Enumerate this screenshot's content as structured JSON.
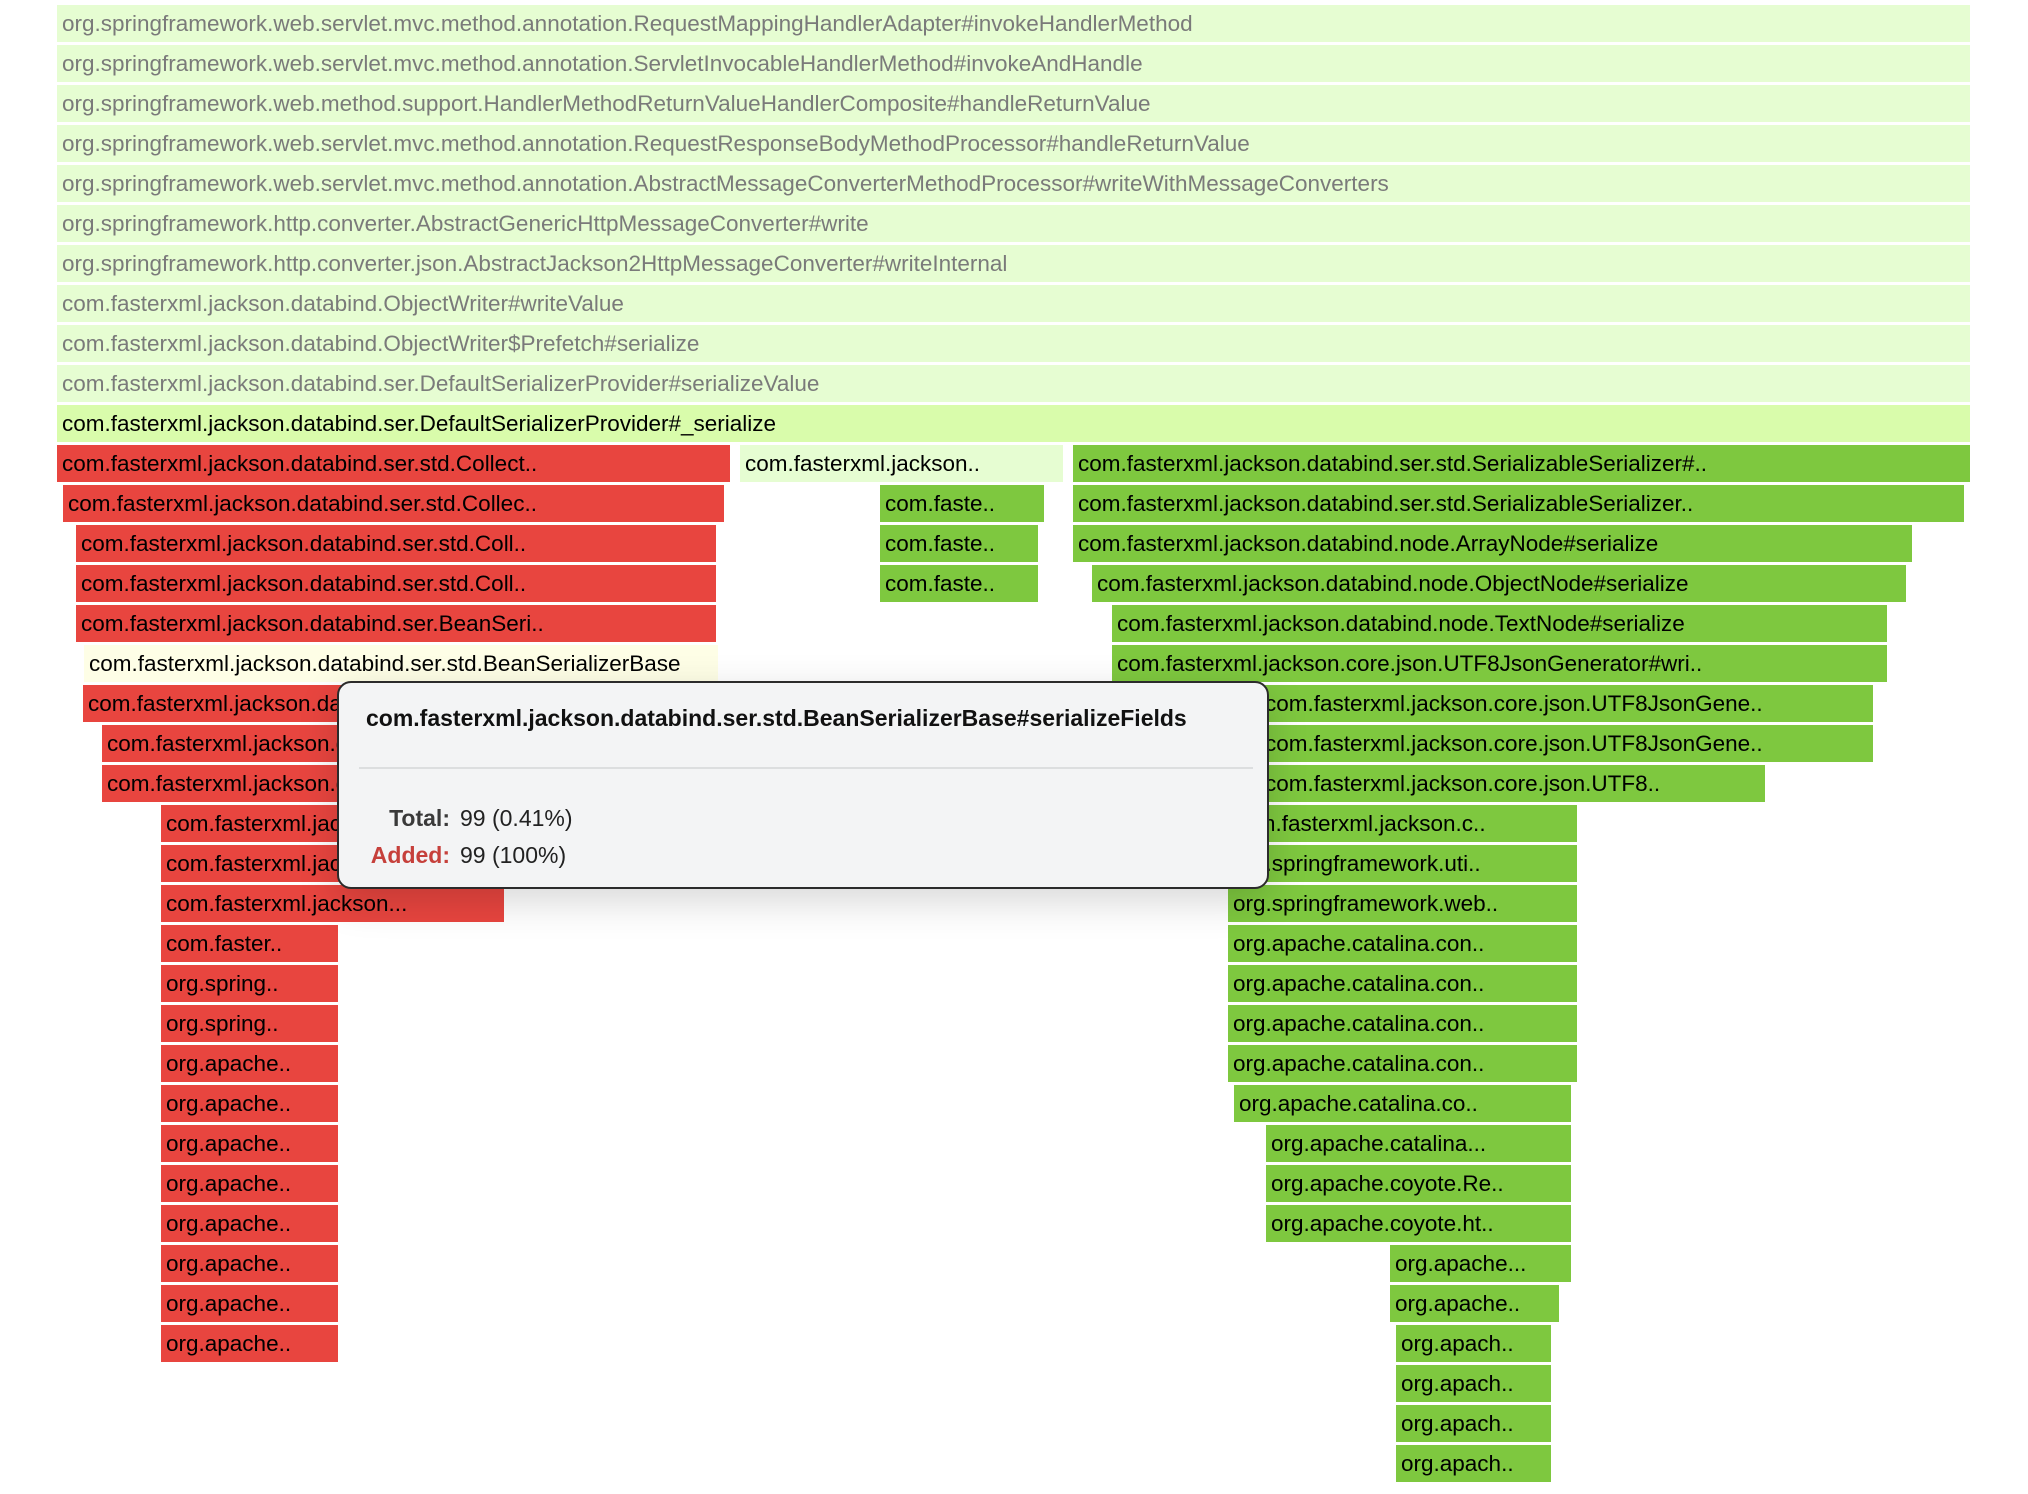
{
  "colors": {
    "neutral_light": "#e6fdd2",
    "neutral_highlight": "#d9fcab",
    "neutral_pale": "#fefee6",
    "removed": "#e8453f",
    "added": "#7ec83f"
  },
  "frames": [
    {
      "label": "org.springframework.web.servlet.mvc.method.annotation.RequestMappingHandlerAdapter#invokeHandlerMethod",
      "color": "neutral_light",
      "dim": true
    },
    {
      "label": "org.springframework.web.servlet.mvc.method.annotation.ServletInvocableHandlerMethod#invokeAndHandle",
      "color": "neutral_light",
      "dim": true
    },
    {
      "label": "org.springframework.web.method.support.HandlerMethodReturnValueHandlerComposite#handleReturnValue",
      "color": "neutral_light",
      "dim": true
    },
    {
      "label": "org.springframework.web.servlet.mvc.method.annotation.RequestResponseBodyMethodProcessor#handleReturnValue",
      "color": "neutral_light",
      "dim": true
    },
    {
      "label": "org.springframework.web.servlet.mvc.method.annotation.AbstractMessageConverterMethodProcessor#writeWithMessageConverters",
      "color": "neutral_light",
      "dim": true
    },
    {
      "label": "org.springframework.http.converter.AbstractGenericHttpMessageConverter#write",
      "color": "neutral_light",
      "dim": true
    },
    {
      "label": "org.springframework.http.converter.json.AbstractJackson2HttpMessageConverter#writeInternal",
      "color": "neutral_light",
      "dim": true
    },
    {
      "label": "com.fasterxml.jackson.databind.ObjectWriter#writeValue",
      "color": "neutral_light",
      "dim": true
    },
    {
      "label": "com.fasterxml.jackson.databind.ObjectWriter$Prefetch#serialize",
      "color": "neutral_light",
      "dim": true
    },
    {
      "label": "com.fasterxml.jackson.databind.ser.DefaultSerializerProvider#serializeValue",
      "color": "neutral_light",
      "dim": true
    },
    {
      "label": "com.fasterxml.jackson.databind.ser.DefaultSerializerProvider#_serialize",
      "color": "neutral_highlight",
      "dim": false
    },
    {
      "label": "com.fasterxml.jackson.databind.ser.std.Collect..",
      "color": "removed",
      "dim": false
    },
    {
      "label": "com.fasterxml.jackson..",
      "color": "neutral_light",
      "dim": false
    },
    {
      "label": "com.fasterxml.jackson.databind.ser.std.SerializableSerializer#..",
      "color": "added",
      "dim": false
    },
    {
      "label": "com.fasterxml.jackson.databind.ser.std.Collec..",
      "color": "removed",
      "dim": false
    },
    {
      "label": "com.faste..",
      "color": "added",
      "dim": false
    },
    {
      "label": "com.fasterxml.jackson.databind.ser.std.SerializableSerializer..",
      "color": "added",
      "dim": false
    },
    {
      "label": "com.fasterxml.jackson.databind.ser.std.Coll..",
      "color": "removed",
      "dim": false
    },
    {
      "label": "com.faste..",
      "color": "added",
      "dim": false
    },
    {
      "label": "com.fasterxml.jackson.databind.node.ArrayNode#serialize",
      "color": "added",
      "dim": false
    },
    {
      "label": "com.fasterxml.jackson.databind.ser.std.Coll..",
      "color": "removed",
      "dim": false
    },
    {
      "label": "com.faste..",
      "color": "added",
      "dim": false
    },
    {
      "label": "com.fasterxml.jackson.databind.node.ObjectNode#serialize",
      "color": "added",
      "dim": false
    },
    {
      "label": "com.fasterxml.jackson.databind.ser.BeanSeri..",
      "color": "removed",
      "dim": false
    },
    {
      "label": "com.fasterxml.jackson.databind.node.TextNode#serialize",
      "color": "added",
      "dim": false
    },
    {
      "label": "com.fasterxml.jackson.databind.ser.std.BeanSerializerBase",
      "color": "neutral_pale",
      "dim": false
    },
    {
      "label": "com.fasterxml.jackson.core.json.UTF8JsonGenerator#wri..",
      "color": "added",
      "dim": false
    },
    {
      "label": "com.fasterxml.jackson.databind..",
      "color": "removed",
      "dim": false
    },
    {
      "label": "com.fasterxml.jackson.core.json.UTF8JsonGene..",
      "color": "added",
      "dim": false
    },
    {
      "label": "com.fasterxml.jackson.databind..",
      "color": "removed",
      "dim": false
    },
    {
      "label": "com.fasterxml.jackson.core.json.UTF8JsonGene..",
      "color": "added",
      "dim": false
    },
    {
      "label": "com.fasterxml.jackson.databind..",
      "color": "removed",
      "dim": false
    },
    {
      "label": "com.fasterxml.jackson.core.json.UTF8..",
      "color": "added",
      "dim": false
    },
    {
      "label": "com.fasterxml.jackson.databind..",
      "color": "removed",
      "dim": false
    },
    {
      "label": "com.fasterxml.jackson.c..",
      "color": "added",
      "dim": false
    },
    {
      "label": "com.fasterxml.jackson.databind..",
      "color": "removed",
      "dim": false
    },
    {
      "label": "org.springframework.uti..",
      "color": "added",
      "dim": false
    },
    {
      "label": "com.fasterxml.jackson...",
      "color": "removed",
      "dim": false
    },
    {
      "label": "org.springframework.web..",
      "color": "added",
      "dim": false
    },
    {
      "label": "com.faster..",
      "color": "removed",
      "dim": false
    },
    {
      "label": "org.apache.catalina.con..",
      "color": "added",
      "dim": false
    },
    {
      "label": "org.spring..",
      "color": "removed",
      "dim": false
    },
    {
      "label": "org.apache.catalina.con..",
      "color": "added",
      "dim": false
    },
    {
      "label": "org.spring..",
      "color": "removed",
      "dim": false
    },
    {
      "label": "org.apache.catalina.con..",
      "color": "added",
      "dim": false
    },
    {
      "label": "org.apache..",
      "color": "removed",
      "dim": false
    },
    {
      "label": "org.apache.catalina.con..",
      "color": "added",
      "dim": false
    },
    {
      "label": "org.apache..",
      "color": "removed",
      "dim": false
    },
    {
      "label": "org.apache.catalina.co..",
      "color": "added",
      "dim": false
    },
    {
      "label": "org.apache..",
      "color": "removed",
      "dim": false
    },
    {
      "label": "org.apache.catalina...",
      "color": "added",
      "dim": false
    },
    {
      "label": "org.apache..",
      "color": "removed",
      "dim": false
    },
    {
      "label": "org.apache.coyote.Re..",
      "color": "added",
      "dim": false
    },
    {
      "label": "org.apache..",
      "color": "removed",
      "dim": false
    },
    {
      "label": "org.apache.coyote.ht..",
      "color": "added",
      "dim": false
    },
    {
      "label": "org.apache..",
      "color": "removed",
      "dim": false
    },
    {
      "label": "org.apache...",
      "color": "added",
      "dim": false
    },
    {
      "label": "org.apache..",
      "color": "removed",
      "dim": false
    },
    {
      "label": "org.apache..",
      "color": "added",
      "dim": false
    },
    {
      "label": "org.apache..",
      "color": "removed",
      "dim": false
    },
    {
      "label": "org.apach..",
      "color": "added",
      "dim": false
    },
    {
      "label": "org.apach..",
      "color": "added",
      "dim": false
    },
    {
      "label": "org.apach..",
      "color": "added",
      "dim": false
    },
    {
      "label": "org.apach..",
      "color": "added",
      "dim": false
    }
  ],
  "tooltip": {
    "title": "com.fasterxml.jackson.databind.ser.std.BeanSerializerBase#serializeFields",
    "total_label": "Total:",
    "total_value": "99 (0.41%)",
    "added_label": "Added:",
    "added_value": "99 (100%)"
  }
}
